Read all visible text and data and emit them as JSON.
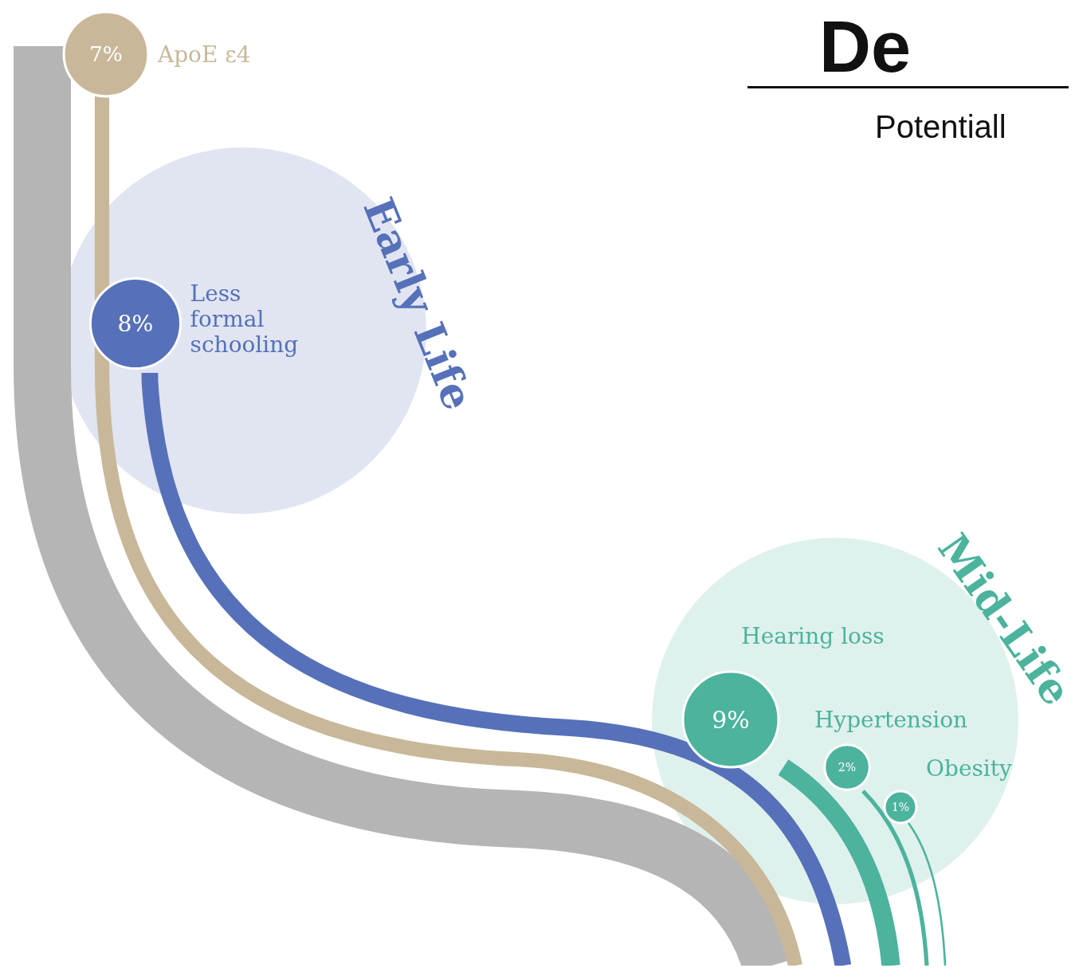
{
  "chart_data": {
    "type": "other",
    "title": "De",
    "subtitle": "Potentiall",
    "categories": [
      "ApoE ε4",
      "Less formal schooling",
      "Hearing loss",
      "Hypertension",
      "Obesity"
    ],
    "values": [
      7,
      8,
      9,
      2,
      1
    ],
    "value_labels": [
      "7%",
      "8%",
      "9%",
      "2%",
      "1%"
    ],
    "colors": [
      "#c8b899",
      "#5671b9",
      "#4cb39d",
      "#4cb39d",
      "#4cb39d"
    ],
    "annotations": [
      "Early Life",
      "Mid-Life"
    ]
  }
}
